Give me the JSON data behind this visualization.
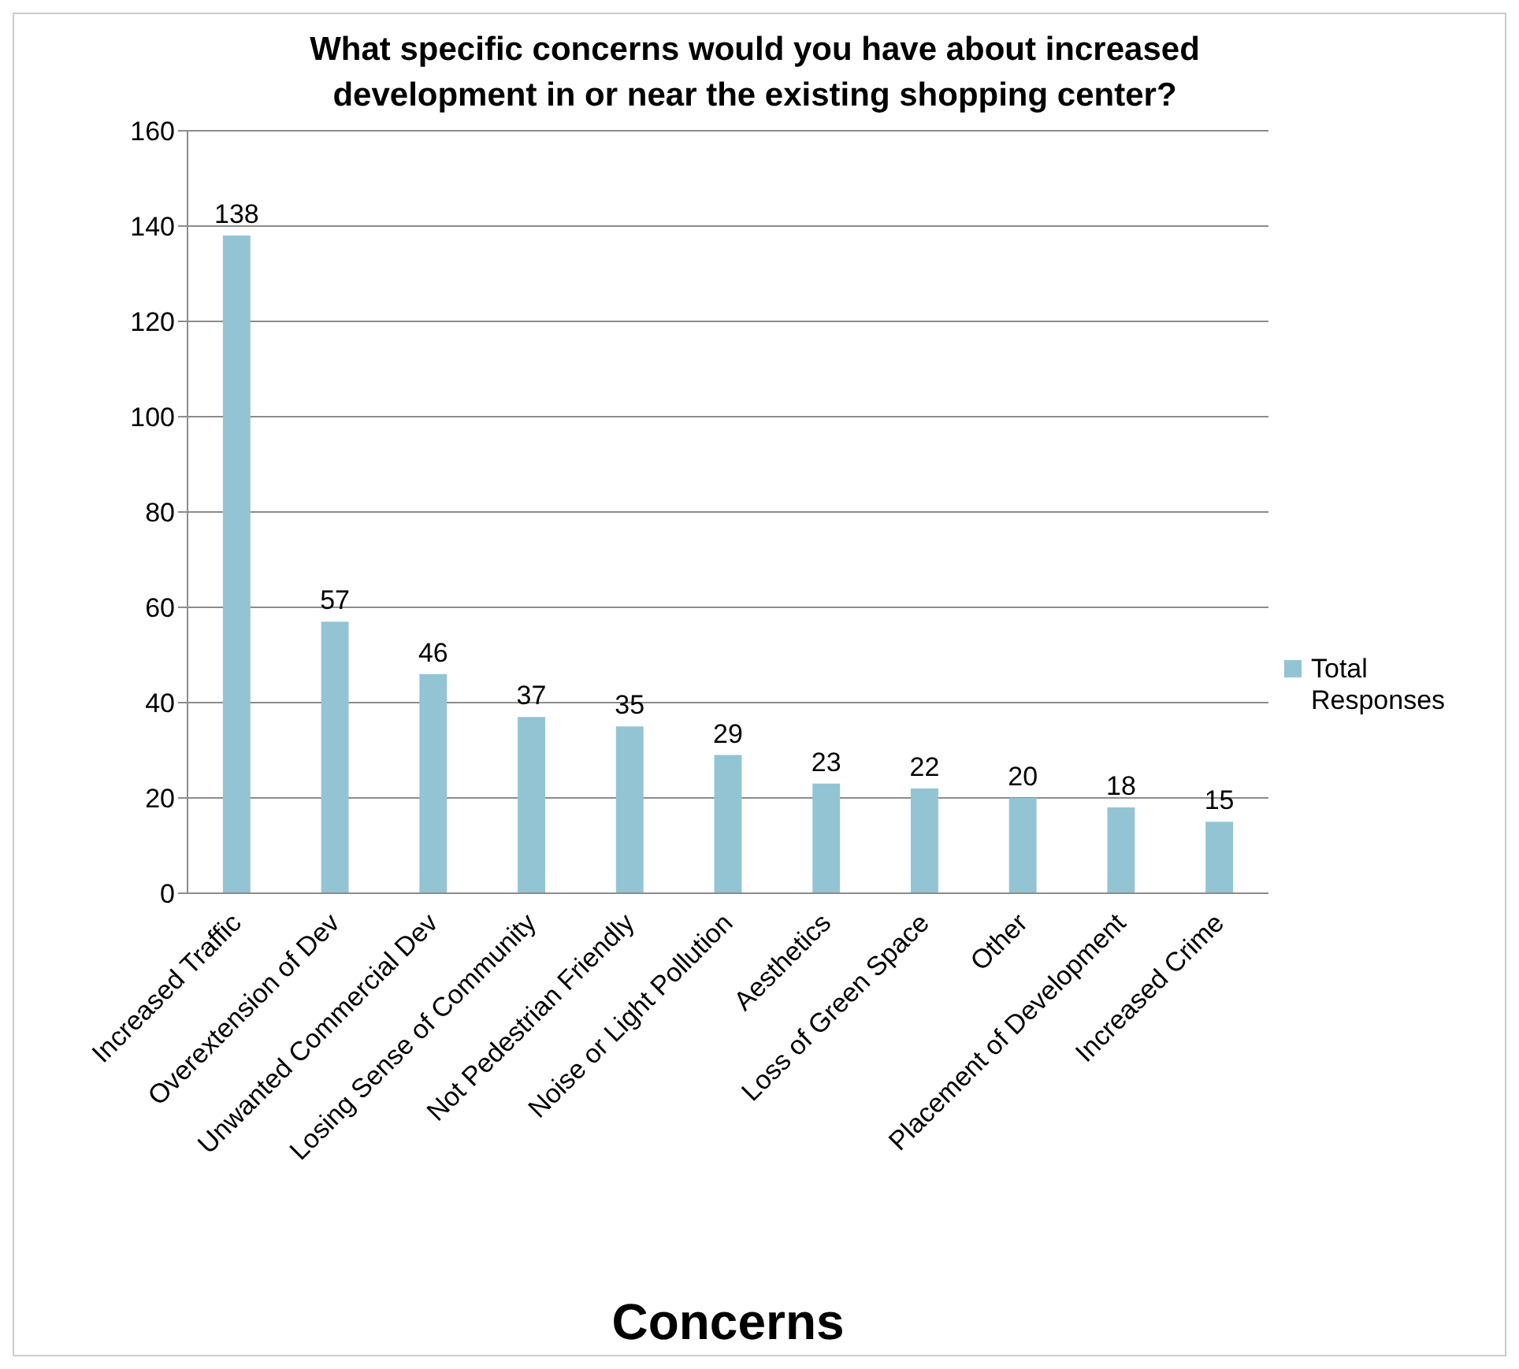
{
  "chart_data": {
    "type": "bar",
    "title": "What specific concerns would you have about increased development in or near the existing shopping center?",
    "xlabel": "Concerns",
    "categories": [
      "Increased Traffic",
      "Overextension of Dev",
      "Unwanted Commercial Dev",
      "Losing Sense of Community",
      "Not Pedestrian Friendly",
      "Noise or Light Pollution",
      "Aesthetics",
      "Loss of Green Space",
      "Other",
      "Placement of Development",
      "Increased Crime"
    ],
    "series": [
      {
        "name": "Total Responses",
        "color": "#93c4d4",
        "values": [
          138,
          57,
          46,
          37,
          35,
          29,
          23,
          22,
          20,
          18,
          15
        ]
      }
    ],
    "ylim": [
      0,
      160
    ],
    "yticks": [
      0,
      20,
      40,
      60,
      80,
      100,
      120,
      140,
      160
    ],
    "grid": "y",
    "legend": "right",
    "data_labels": true
  }
}
